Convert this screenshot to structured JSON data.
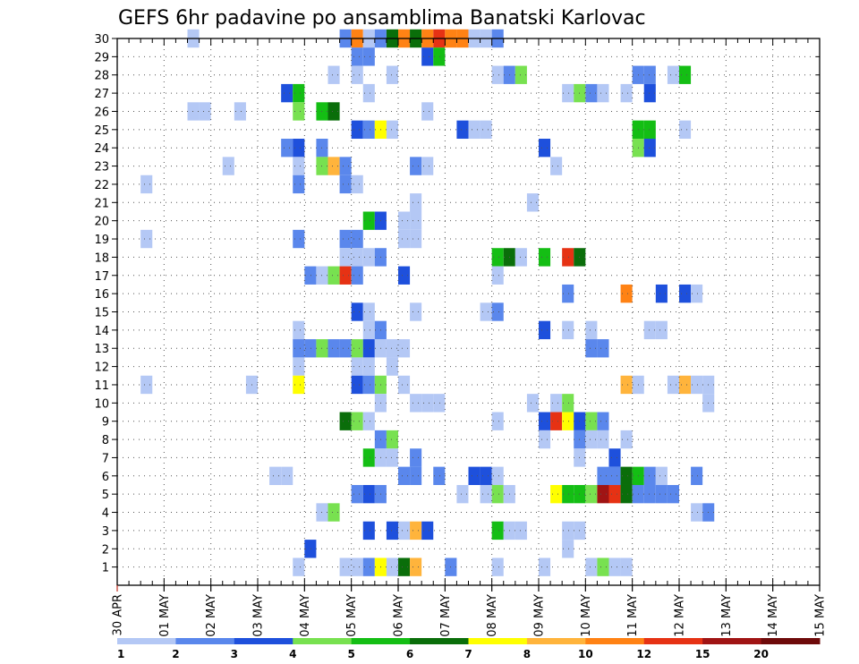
{
  "chart_data": {
    "type": "heatmap",
    "title": "GEFS 6hr padavine po ansamblima Banatski Karlovac",
    "xlabel": "",
    "ylabel": "",
    "x_tick_labels": [
      "30 APR",
      "01 MAY",
      "02 MAY",
      "03 MAY",
      "04 MAY",
      "05 MAY",
      "06 MAY",
      "07 MAY",
      "08 MAY",
      "09 MAY",
      "10 MAY",
      "11 MAY",
      "12 MAY",
      "13 MAY",
      "14 MAY",
      "15 MAY"
    ],
    "y_tick_labels": [
      "1",
      "2",
      "3",
      "4",
      "5",
      "6",
      "7",
      "8",
      "9",
      "10",
      "11",
      "12",
      "13",
      "14",
      "15",
      "16",
      "17",
      "18",
      "19",
      "20",
      "21",
      "22",
      "23",
      "24",
      "25",
      "26",
      "27",
      "28",
      "29",
      "30"
    ],
    "ylim": [
      0,
      30
    ],
    "x_steps_per_day": 4,
    "n_steps": 60,
    "grid": true,
    "colorbar": {
      "position": "bottom",
      "labels": [
        "1",
        "2",
        "3",
        "4",
        "5",
        "6",
        "7",
        "8",
        "10",
        "12",
        "15",
        "20"
      ],
      "colors": [
        "#b4c8f5",
        "#5a87ec",
        "#1e50dc",
        "#78e150",
        "#14be14",
        "#0a6e0a",
        "#ffff00",
        "#ffb43c",
        "#ff8214",
        "#e63214",
        "#a01414",
        "#6e0a0a"
      ]
    },
    "value_colors": {
      "1": "#b4c8f5",
      "2": "#5a87ec",
      "3": "#1e50dc",
      "4": "#78e150",
      "5": "#14be14",
      "6": "#0a6e0a",
      "7": "#ffff00",
      "8": "#ffb43c",
      "10": "#ff8214",
      "12": "#e63214",
      "15": "#a01414",
      "20": "#6e0a0a"
    },
    "cell_format": "[time_step, member, value_mm]",
    "cells": [
      [
        6,
        30,
        1
      ],
      [
        19,
        30,
        2
      ],
      [
        20,
        30,
        10
      ],
      [
        21,
        30,
        1
      ],
      [
        22,
        30,
        2
      ],
      [
        23,
        30,
        6
      ],
      [
        24,
        30,
        10
      ],
      [
        25,
        30,
        6
      ],
      [
        26,
        30,
        10
      ],
      [
        27,
        30,
        12
      ],
      [
        28,
        30,
        10
      ],
      [
        29,
        30,
        10
      ],
      [
        30,
        30,
        1
      ],
      [
        31,
        30,
        1
      ],
      [
        32,
        30,
        2
      ],
      [
        20,
        29,
        2
      ],
      [
        21,
        29,
        2
      ],
      [
        26,
        29,
        3
      ],
      [
        27,
        29,
        5
      ],
      [
        18,
        28,
        1
      ],
      [
        20,
        28,
        1
      ],
      [
        23,
        28,
        1
      ],
      [
        32,
        28,
        1
      ],
      [
        33,
        28,
        2
      ],
      [
        34,
        28,
        4
      ],
      [
        44,
        28,
        2
      ],
      [
        45,
        28,
        2
      ],
      [
        47,
        28,
        1
      ],
      [
        48,
        28,
        5
      ],
      [
        14,
        27,
        3
      ],
      [
        15,
        27,
        5
      ],
      [
        21,
        27,
        1
      ],
      [
        38,
        27,
        1
      ],
      [
        39,
        27,
        4
      ],
      [
        40,
        27,
        2
      ],
      [
        41,
        27,
        1
      ],
      [
        43,
        27,
        1
      ],
      [
        45,
        27,
        3
      ],
      [
        6,
        26,
        1
      ],
      [
        7,
        26,
        1
      ],
      [
        10,
        26,
        1
      ],
      [
        15,
        26,
        4
      ],
      [
        17,
        26,
        5
      ],
      [
        18,
        26,
        6
      ],
      [
        26,
        26,
        1
      ],
      [
        20,
        25,
        3
      ],
      [
        21,
        25,
        2
      ],
      [
        22,
        25,
        7
      ],
      [
        23,
        25,
        1
      ],
      [
        29,
        25,
        3
      ],
      [
        30,
        25,
        1
      ],
      [
        31,
        25,
        1
      ],
      [
        44,
        25,
        5
      ],
      [
        45,
        25,
        5
      ],
      [
        48,
        25,
        1
      ],
      [
        14,
        24,
        2
      ],
      [
        15,
        24,
        3
      ],
      [
        17,
        24,
        2
      ],
      [
        36,
        24,
        3
      ],
      [
        44,
        24,
        4
      ],
      [
        45,
        24,
        3
      ],
      [
        9,
        23,
        1
      ],
      [
        15,
        23,
        1
      ],
      [
        17,
        23,
        4
      ],
      [
        18,
        23,
        8
      ],
      [
        19,
        23,
        2
      ],
      [
        25,
        23,
        2
      ],
      [
        26,
        23,
        1
      ],
      [
        37,
        23,
        1
      ],
      [
        2,
        22,
        1
      ],
      [
        15,
        22,
        2
      ],
      [
        19,
        22,
        2
      ],
      [
        20,
        22,
        1
      ],
      [
        25,
        21,
        1
      ],
      [
        35,
        21,
        1
      ],
      [
        21,
        20,
        5
      ],
      [
        22,
        20,
        3
      ],
      [
        24,
        20,
        1
      ],
      [
        25,
        20,
        1
      ],
      [
        2,
        19,
        1
      ],
      [
        15,
        19,
        2
      ],
      [
        19,
        19,
        2
      ],
      [
        20,
        19,
        2
      ],
      [
        24,
        19,
        1
      ],
      [
        25,
        19,
        1
      ],
      [
        19,
        18,
        1
      ],
      [
        20,
        18,
        1
      ],
      [
        21,
        18,
        1
      ],
      [
        22,
        18,
        2
      ],
      [
        32,
        18,
        5
      ],
      [
        33,
        18,
        6
      ],
      [
        34,
        18,
        1
      ],
      [
        36,
        18,
        5
      ],
      [
        38,
        18,
        12
      ],
      [
        39,
        18,
        6
      ],
      [
        16,
        17,
        2
      ],
      [
        17,
        17,
        1
      ],
      [
        18,
        17,
        4
      ],
      [
        19,
        17,
        12
      ],
      [
        20,
        17,
        2
      ],
      [
        24,
        17,
        3
      ],
      [
        32,
        17,
        1
      ],
      [
        38,
        16,
        2
      ],
      [
        43,
        16,
        10
      ],
      [
        46,
        16,
        3
      ],
      [
        48,
        16,
        3
      ],
      [
        49,
        16,
        1
      ],
      [
        20,
        15,
        3
      ],
      [
        21,
        15,
        1
      ],
      [
        25,
        15,
        1
      ],
      [
        31,
        15,
        1
      ],
      [
        32,
        15,
        2
      ],
      [
        15,
        14,
        1
      ],
      [
        21,
        14,
        1
      ],
      [
        22,
        14,
        2
      ],
      [
        36,
        14,
        3
      ],
      [
        38,
        14,
        1
      ],
      [
        40,
        14,
        1
      ],
      [
        45,
        14,
        1
      ],
      [
        46,
        14,
        1
      ],
      [
        15,
        13,
        2
      ],
      [
        16,
        13,
        2
      ],
      [
        17,
        13,
        4
      ],
      [
        18,
        13,
        2
      ],
      [
        19,
        13,
        2
      ],
      [
        20,
        13,
        4
      ],
      [
        21,
        13,
        3
      ],
      [
        22,
        13,
        1
      ],
      [
        23,
        13,
        1
      ],
      [
        24,
        13,
        1
      ],
      [
        40,
        13,
        2
      ],
      [
        41,
        13,
        2
      ],
      [
        15,
        12,
        1
      ],
      [
        20,
        12,
        1
      ],
      [
        21,
        12,
        1
      ],
      [
        23,
        12,
        1
      ],
      [
        2,
        11,
        1
      ],
      [
        11,
        11,
        1
      ],
      [
        15,
        11,
        7
      ],
      [
        20,
        11,
        3
      ],
      [
        21,
        11,
        2
      ],
      [
        22,
        11,
        4
      ],
      [
        24,
        11,
        1
      ],
      [
        43,
        11,
        8
      ],
      [
        44,
        11,
        1
      ],
      [
        47,
        11,
        1
      ],
      [
        48,
        11,
        8
      ],
      [
        49,
        11,
        1
      ],
      [
        50,
        11,
        1
      ],
      [
        22,
        10,
        1
      ],
      [
        25,
        10,
        1
      ],
      [
        26,
        10,
        1
      ],
      [
        27,
        10,
        1
      ],
      [
        35,
        10,
        1
      ],
      [
        37,
        10,
        1
      ],
      [
        38,
        10,
        4
      ],
      [
        50,
        10,
        1
      ],
      [
        19,
        9,
        6
      ],
      [
        20,
        9,
        4
      ],
      [
        21,
        9,
        1
      ],
      [
        32,
        9,
        1
      ],
      [
        36,
        9,
        3
      ],
      [
        37,
        9,
        12
      ],
      [
        38,
        9,
        7
      ],
      [
        39,
        9,
        3
      ],
      [
        40,
        9,
        4
      ],
      [
        41,
        9,
        2
      ],
      [
        22,
        8,
        2
      ],
      [
        23,
        8,
        4
      ],
      [
        36,
        8,
        1
      ],
      [
        39,
        8,
        2
      ],
      [
        40,
        8,
        1
      ],
      [
        41,
        8,
        1
      ],
      [
        43,
        8,
        1
      ],
      [
        21,
        7,
        5
      ],
      [
        22,
        7,
        1
      ],
      [
        23,
        7,
        1
      ],
      [
        25,
        7,
        2
      ],
      [
        39,
        7,
        1
      ],
      [
        42,
        7,
        3
      ],
      [
        13,
        6,
        1
      ],
      [
        14,
        6,
        1
      ],
      [
        24,
        6,
        2
      ],
      [
        25,
        6,
        2
      ],
      [
        27,
        6,
        2
      ],
      [
        30,
        6,
        3
      ],
      [
        31,
        6,
        3
      ],
      [
        32,
        6,
        1
      ],
      [
        41,
        6,
        2
      ],
      [
        42,
        6,
        2
      ],
      [
        43,
        6,
        6
      ],
      [
        44,
        6,
        5
      ],
      [
        45,
        6,
        2
      ],
      [
        46,
        6,
        1
      ],
      [
        49,
        6,
        2
      ],
      [
        20,
        5,
        2
      ],
      [
        21,
        5,
        3
      ],
      [
        22,
        5,
        2
      ],
      [
        29,
        5,
        1
      ],
      [
        31,
        5,
        1
      ],
      [
        32,
        5,
        4
      ],
      [
        33,
        5,
        1
      ],
      [
        37,
        5,
        7
      ],
      [
        38,
        5,
        5
      ],
      [
        39,
        5,
        5
      ],
      [
        40,
        5,
        4
      ],
      [
        41,
        5,
        15
      ],
      [
        42,
        5,
        12
      ],
      [
        43,
        5,
        6
      ],
      [
        44,
        5,
        2
      ],
      [
        45,
        5,
        2
      ],
      [
        46,
        5,
        2
      ],
      [
        47,
        5,
        2
      ],
      [
        17,
        4,
        1
      ],
      [
        18,
        4,
        4
      ],
      [
        49,
        4,
        1
      ],
      [
        50,
        4,
        2
      ],
      [
        21,
        3,
        3
      ],
      [
        23,
        3,
        3
      ],
      [
        24,
        3,
        1
      ],
      [
        25,
        3,
        8
      ],
      [
        26,
        3,
        3
      ],
      [
        32,
        3,
        5
      ],
      [
        33,
        3,
        1
      ],
      [
        34,
        3,
        1
      ],
      [
        38,
        3,
        1
      ],
      [
        39,
        3,
        1
      ],
      [
        16,
        2,
        3
      ],
      [
        38,
        2,
        1
      ],
      [
        15,
        1,
        1
      ],
      [
        19,
        1,
        1
      ],
      [
        20,
        1,
        1
      ],
      [
        21,
        1,
        2
      ],
      [
        22,
        1,
        7
      ],
      [
        23,
        1,
        1
      ],
      [
        24,
        1,
        6
      ],
      [
        25,
        1,
        8
      ],
      [
        28,
        1,
        2
      ],
      [
        32,
        1,
        1
      ],
      [
        36,
        1,
        1
      ],
      [
        40,
        1,
        1
      ],
      [
        41,
        1,
        4
      ],
      [
        42,
        1,
        1
      ],
      [
        43,
        1,
        1
      ]
    ]
  }
}
